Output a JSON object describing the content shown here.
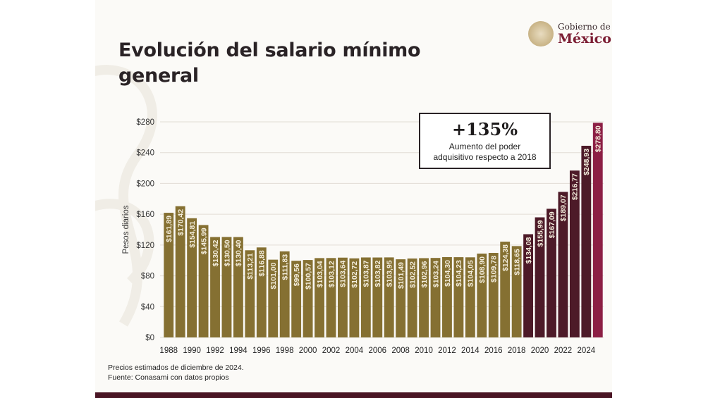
{
  "header": {
    "title": "Evolución del salario mínimo general",
    "logo_line1": "Gobierno de",
    "logo_line2": "México"
  },
  "callout": {
    "value": "+135%",
    "text_line1": "Aumento del poder",
    "text_line2": "adquisitivo respecto a 2018"
  },
  "footer": {
    "note1": "Precios estimados de diciembre de 2024.",
    "note2": "Fuente: Conasami con datos propios"
  },
  "colors": {
    "gold": "#857032",
    "maroon_dark": "#4d1a28",
    "maroon_last": "#8c1f44",
    "grid": "#e2ddd6"
  },
  "chart_data": {
    "type": "bar",
    "title": "Evolución del salario mínimo general",
    "xlabel": "",
    "ylabel": "Pesos diarios",
    "ylim": [
      0,
      280
    ],
    "yticks": [
      0,
      40,
      80,
      120,
      160,
      200,
      240,
      280
    ],
    "ytick_labels": [
      "$0",
      "$40",
      "$80",
      "$120",
      "$160",
      "$200",
      "$240",
      "$280"
    ],
    "xtick_labels": [
      "1988",
      "1990",
      "1992",
      "1994",
      "1996",
      "1998",
      "2000",
      "2002",
      "2004",
      "2006",
      "2008",
      "2010",
      "2012",
      "2014",
      "2016",
      "2018",
      "2020",
      "2022",
      "2024"
    ],
    "grid": true,
    "categories": [
      "1988",
      "1989",
      "1990",
      "1991",
      "1992",
      "1993",
      "1994",
      "1995",
      "1996",
      "1997",
      "1998",
      "1999",
      "2000",
      "2001",
      "2002",
      "2003",
      "2004",
      "2005",
      "2006",
      "2007",
      "2008",
      "2009",
      "2010",
      "2011",
      "2012",
      "2013",
      "2014",
      "2015",
      "2016",
      "2017",
      "2018",
      "2019",
      "2020",
      "2021",
      "2022",
      "2023",
      "2024",
      "2025"
    ],
    "values": [
      161.89,
      170.42,
      154.81,
      145.99,
      130.42,
      130.5,
      130.4,
      113.21,
      116.88,
      101.0,
      111.83,
      99.56,
      100.57,
      103.04,
      103.12,
      103.64,
      102.72,
      103.87,
      103.82,
      103.95,
      101.49,
      102.52,
      102.96,
      103.24,
      104.3,
      104.23,
      104.05,
      108.9,
      109.78,
      124.38,
      118.65,
      134.08,
      155.99,
      167.09,
      189.07,
      216.77,
      248.93,
      278.8
    ],
    "labels": [
      "$161,89",
      "$170,42",
      "$154,81",
      "$145,99",
      "$130,42",
      "$130,50",
      "$130,40",
      "$113,21",
      "$116,88",
      "$101,00",
      "$111,83",
      "$99,56",
      "$100,57",
      "$103,04",
      "$103,12",
      "$103,64",
      "$102,72",
      "$103,87",
      "$103,82",
      "$103,95",
      "$101,49",
      "$102,52",
      "$102,96",
      "$103,24",
      "$104,30",
      "$104,23",
      "$104,05",
      "$108,90",
      "$109,78",
      "$124,38",
      "$118,65",
      "$134,08",
      "$155,99",
      "$167,09",
      "$189,07",
      "$216,77",
      "$248,93",
      "$278,80"
    ]
  }
}
